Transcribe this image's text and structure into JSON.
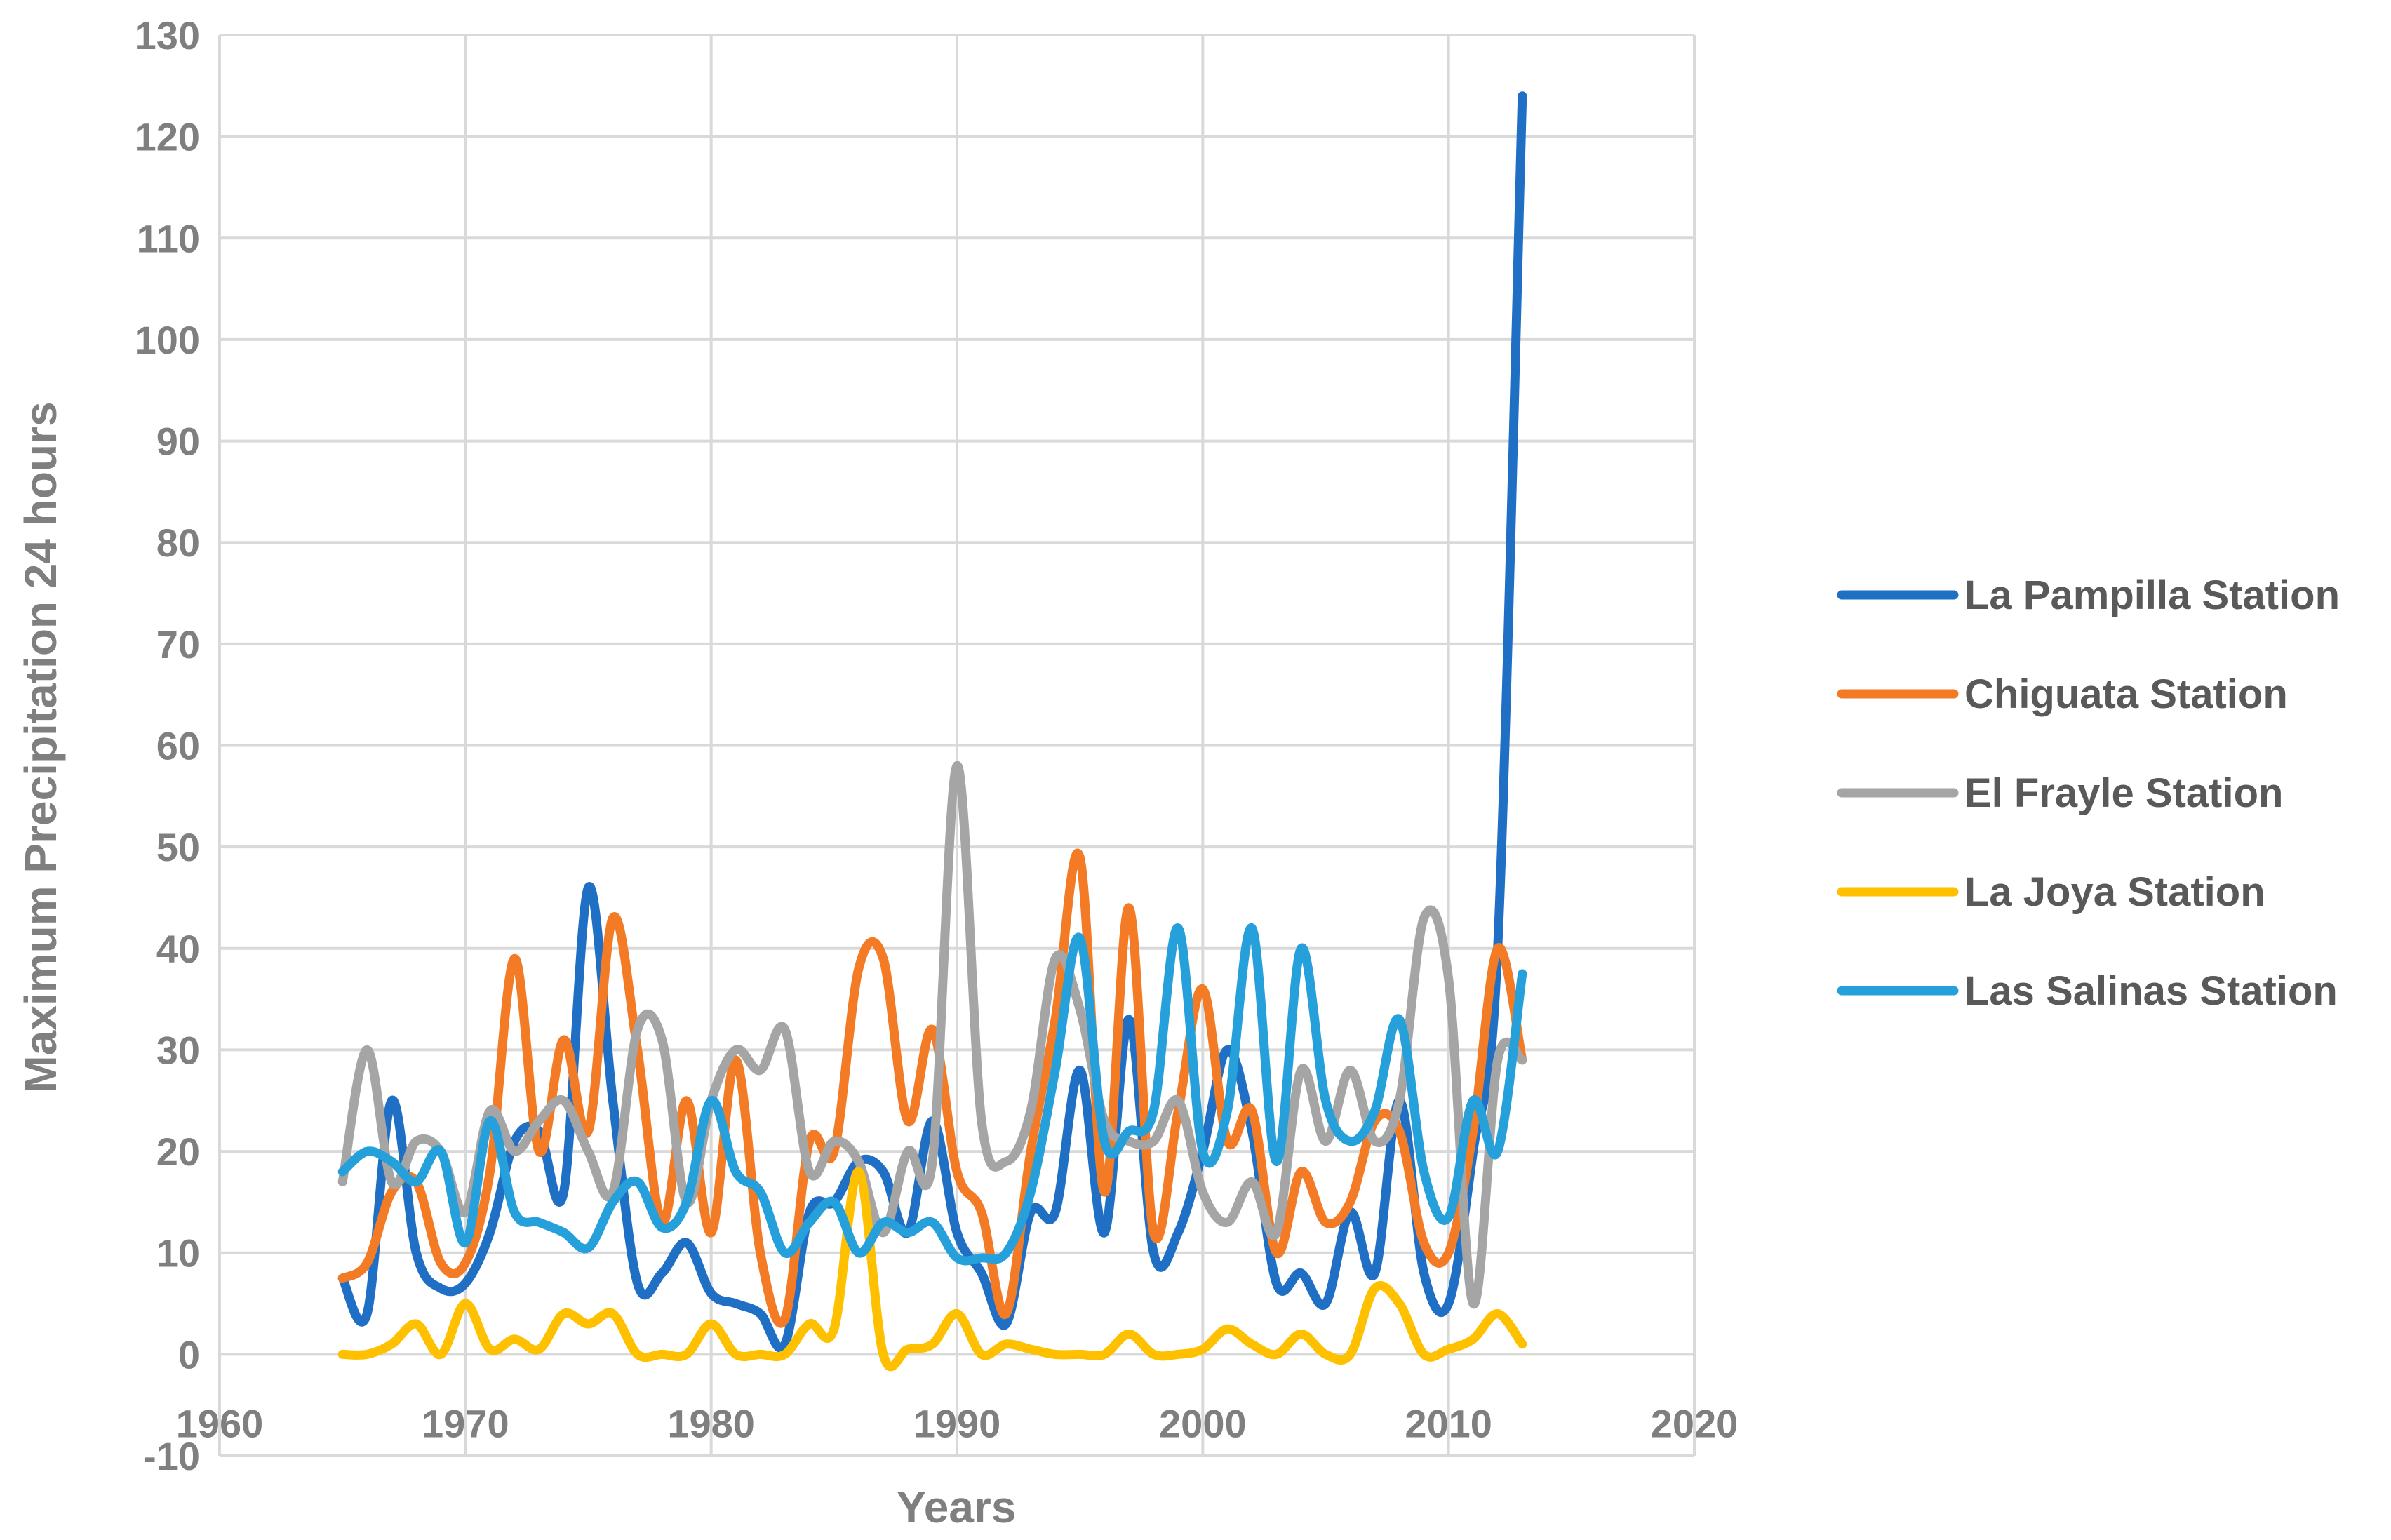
{
  "chart_data": {
    "type": "line",
    "title": "",
    "xlabel": "Years",
    "ylabel": "Maximum Precipitation 24 hours",
    "xlim": [
      1960,
      2020
    ],
    "ylim": [
      -10,
      130
    ],
    "xticks": [
      1960,
      1970,
      1980,
      1990,
      2000,
      2010,
      2020
    ],
    "yticks": [
      -10,
      0,
      10,
      20,
      30,
      40,
      50,
      60,
      70,
      80,
      90,
      100,
      110,
      120,
      130
    ],
    "grid": true,
    "legend_position": "right",
    "x": [
      1965,
      1966,
      1967,
      1968,
      1969,
      1970,
      1971,
      1972,
      1973,
      1974,
      1975,
      1976,
      1977,
      1978,
      1979,
      1980,
      1981,
      1982,
      1983,
      1984,
      1985,
      1986,
      1987,
      1988,
      1989,
      1990,
      1991,
      1992,
      1993,
      1994,
      1995,
      1996,
      1997,
      1998,
      1999,
      2000,
      2001,
      2002,
      2003,
      2004,
      2005,
      2006,
      2007,
      2008,
      2009,
      2010,
      2011,
      2012,
      2013
    ],
    "series": [
      {
        "name": "La Pampilla Station",
        "color": "#1f6fc5",
        "values": [
          7.5,
          4,
          25,
          10,
          6.5,
          7,
          12,
          21,
          22,
          16,
          46,
          25,
          7,
          8,
          11,
          6,
          5,
          4,
          1,
          14,
          15,
          19,
          18,
          12,
          23,
          12,
          8,
          3,
          14,
          14,
          28,
          12,
          33,
          10,
          12,
          20,
          30,
          22,
          7,
          8,
          5,
          14,
          8,
          25,
          8,
          5,
          20,
          40,
          124
        ]
      },
      {
        "name": "Chiguata Station",
        "color": "#f47b25",
        "values": [
          7.5,
          9,
          16,
          17,
          9,
          9,
          18,
          39,
          20,
          31,
          22,
          43,
          30,
          13,
          25,
          12,
          29,
          10,
          3.5,
          21,
          20,
          38,
          39,
          23,
          32,
          18,
          14,
          4,
          20,
          33,
          49,
          16,
          44,
          12,
          24,
          36,
          21,
          24,
          10,
          18,
          13,
          15,
          23,
          22,
          11,
          10,
          22,
          40,
          29
        ]
      },
      {
        "name": "El Frayle Station",
        "color": "#a5a5a5",
        "values": [
          17,
          30,
          17,
          21,
          20,
          14,
          24,
          20,
          23,
          25,
          20,
          16,
          32,
          31,
          15,
          25,
          30,
          28,
          32,
          18,
          21,
          19,
          12,
          20,
          19,
          58,
          23,
          19,
          24,
          39,
          34,
          23,
          21,
          21,
          25,
          16,
          13,
          17,
          12,
          28,
          21,
          28,
          21,
          25,
          43,
          37,
          5,
          29,
          29
        ]
      },
      {
        "name": "La Joya Station",
        "color": "#ffc000",
        "values": [
          0,
          0,
          1,
          3,
          0,
          5,
          0.5,
          1.5,
          0.5,
          4,
          3,
          4,
          0,
          0,
          0,
          3,
          0,
          0,
          0,
          3,
          2.5,
          18,
          0,
          0.5,
          1,
          4,
          0,
          1,
          0.5,
          0,
          0,
          0,
          2,
          0,
          0,
          0.5,
          2.5,
          1,
          0,
          2,
          0,
          0,
          6.5,
          5,
          0,
          0.5,
          1.5,
          4,
          1
        ]
      },
      {
        "name": "Las Salinas Station",
        "color": "#25a0da",
        "values": [
          18,
          20,
          19,
          17,
          20,
          11,
          23,
          14,
          13,
          12,
          10.5,
          15,
          17,
          12.5,
          15,
          25,
          18,
          16,
          10,
          13,
          15,
          10,
          13,
          12,
          13,
          9.5,
          9.5,
          10,
          16,
          28,
          41,
          21,
          22,
          24,
          42,
          20,
          24,
          42,
          19,
          40,
          25,
          21,
          24,
          33,
          18,
          13.5,
          25,
          20,
          37.5
        ]
      }
    ]
  }
}
